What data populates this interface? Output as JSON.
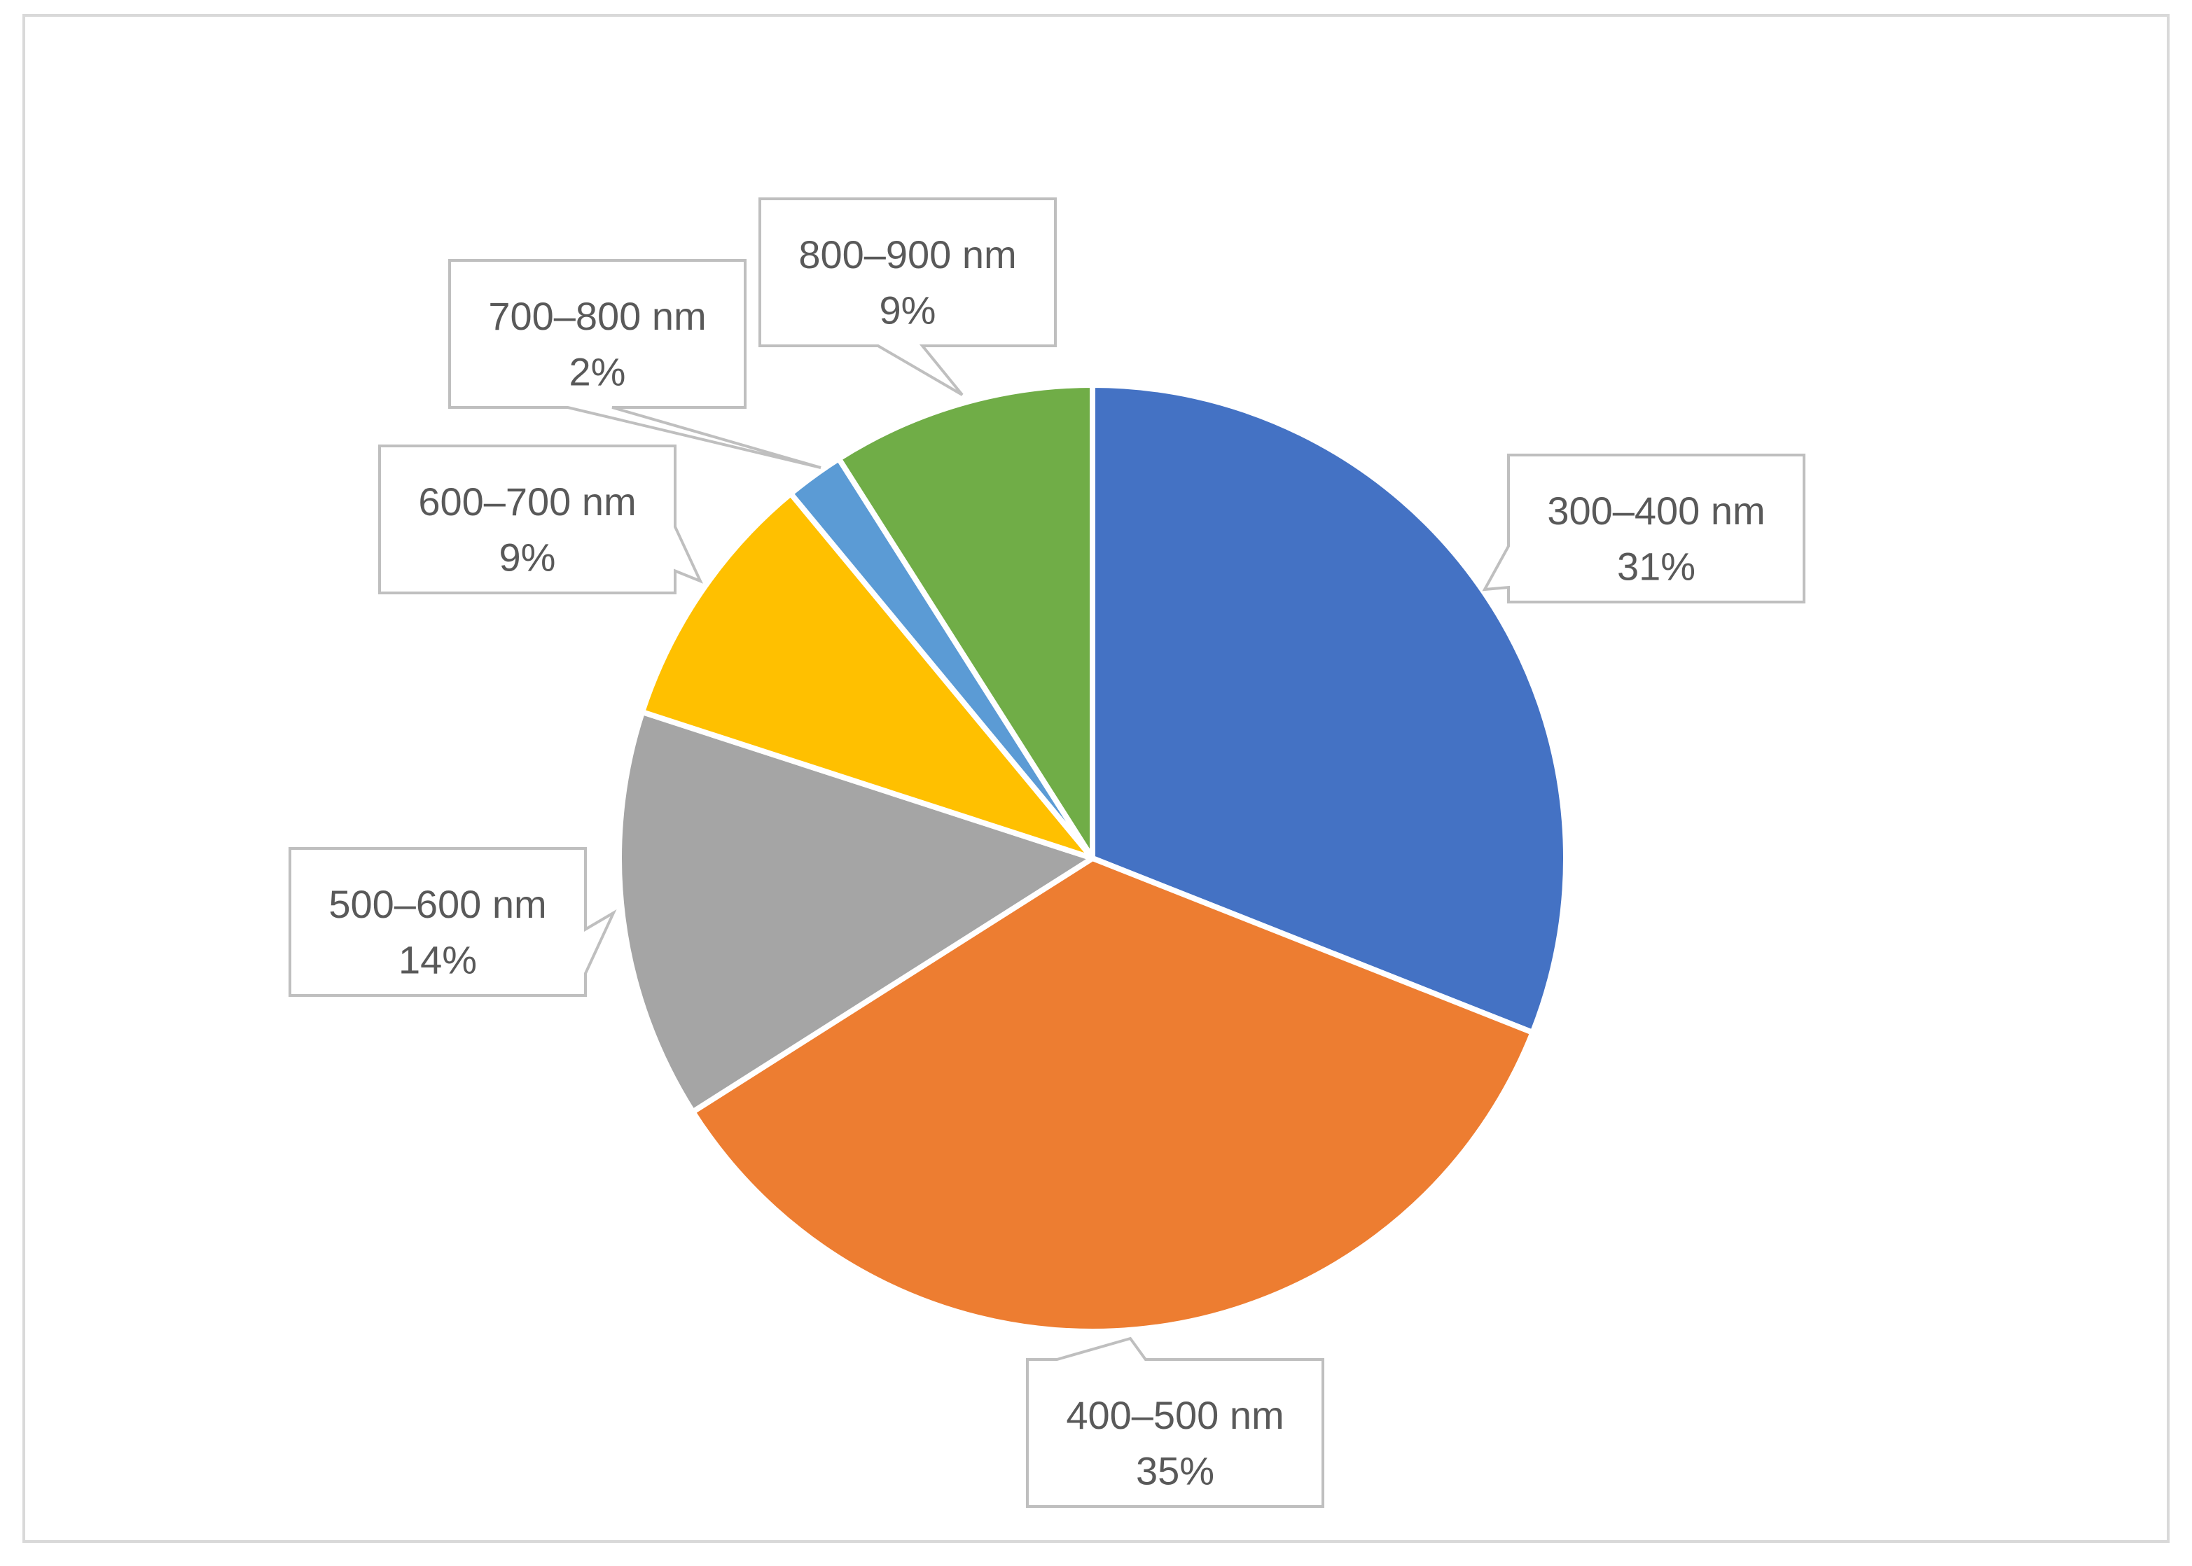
{
  "chart_data": {
    "type": "pie",
    "title": "",
    "slices": [
      {
        "label": "300–400 nm",
        "value": 31,
        "value_label": "31%",
        "color": "#4472c4"
      },
      {
        "label": "400–500 nm",
        "value": 35,
        "value_label": "35%",
        "color": "#ed7d31"
      },
      {
        "label": "500–600 nm",
        "value": 14,
        "value_label": "14%",
        "color": "#a5a5a5"
      },
      {
        "label": "600–700 nm",
        "value": 9,
        "value_label": "9%",
        "color": "#ffc000"
      },
      {
        "label": "700–800 nm",
        "value": 2,
        "value_label": "2%",
        "color": "#5b9bd5"
      },
      {
        "label": "800–900 nm",
        "value": 9,
        "value_label": "9%",
        "color": "#70ad47"
      }
    ],
    "start_angle": "12 o'clock",
    "direction": "clockwise",
    "legend": "none",
    "data_labels": "callouts with category name and percentage"
  }
}
